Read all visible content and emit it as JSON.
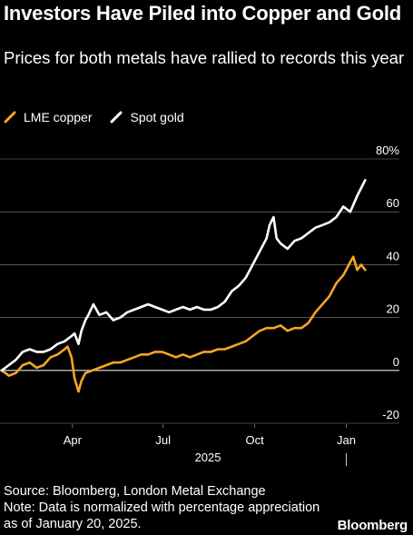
{
  "header": {
    "title": "Investors Have Piled into Copper and Gold",
    "subtitle": "Prices for both metals have rallied to records this year"
  },
  "footer": {
    "source": "Source: Bloomberg, London Metal Exchange",
    "note": "Note: Data is normalized with percentage appreciation as of January 20, 2025.",
    "brand": "Bloomberg"
  },
  "colors": {
    "background": "#000000",
    "copper": "#f5a623",
    "gold": "#ffffff",
    "grid": "#8a8a8a"
  },
  "chart_data": {
    "type": "line",
    "title": "Investors Have Piled into Copper and Gold",
    "subtitle": "Prices for both metals have rallied to records this year",
    "x_range": [
      "2025-01-20",
      "2026-01-27"
    ],
    "x_ticks": [
      {
        "date": "2025-04-01",
        "label": "Apr"
      },
      {
        "date": "2025-07-01",
        "label": "Jul"
      },
      {
        "date": "2025-10-01",
        "label": "Oct"
      },
      {
        "date": "2026-01-01",
        "label": "Jan"
      }
    ],
    "x_year_label": "2025",
    "ylim": [
      -20,
      80
    ],
    "y_ticks": [
      -20,
      0,
      20,
      40,
      60,
      80
    ],
    "y_tick_labels": [
      "-20",
      "0",
      "20",
      "40",
      "60",
      "80%"
    ],
    "y_axis_side": "right",
    "grid": true,
    "legend_position": "top-left",
    "series": [
      {
        "name": "LME copper",
        "color": "#f5a623",
        "points": [
          [
            "2025-01-20",
            0
          ],
          [
            "2025-01-27",
            -2
          ],
          [
            "2025-02-03",
            -1
          ],
          [
            "2025-02-10",
            2
          ],
          [
            "2025-02-17",
            3
          ],
          [
            "2025-02-24",
            1
          ],
          [
            "2025-03-03",
            2
          ],
          [
            "2025-03-10",
            5
          ],
          [
            "2025-03-17",
            6
          ],
          [
            "2025-03-24",
            8
          ],
          [
            "2025-03-27",
            9
          ],
          [
            "2025-03-31",
            5
          ],
          [
            "2025-04-03",
            -3
          ],
          [
            "2025-04-07",
            -8
          ],
          [
            "2025-04-10",
            -4
          ],
          [
            "2025-04-14",
            -1
          ],
          [
            "2025-04-21",
            0
          ],
          [
            "2025-04-28",
            1
          ],
          [
            "2025-05-05",
            2
          ],
          [
            "2025-05-12",
            3
          ],
          [
            "2025-05-19",
            3
          ],
          [
            "2025-05-26",
            4
          ],
          [
            "2025-06-02",
            5
          ],
          [
            "2025-06-09",
            6
          ],
          [
            "2025-06-16",
            6
          ],
          [
            "2025-06-23",
            7
          ],
          [
            "2025-06-30",
            7
          ],
          [
            "2025-07-07",
            6
          ],
          [
            "2025-07-14",
            5
          ],
          [
            "2025-07-21",
            6
          ],
          [
            "2025-07-28",
            5
          ],
          [
            "2025-08-04",
            6
          ],
          [
            "2025-08-11",
            7
          ],
          [
            "2025-08-18",
            7
          ],
          [
            "2025-08-25",
            8
          ],
          [
            "2025-09-01",
            8
          ],
          [
            "2025-09-08",
            9
          ],
          [
            "2025-09-15",
            10
          ],
          [
            "2025-09-22",
            11
          ],
          [
            "2025-09-29",
            13
          ],
          [
            "2025-10-06",
            15
          ],
          [
            "2025-10-13",
            16
          ],
          [
            "2025-10-20",
            16
          ],
          [
            "2025-10-27",
            17
          ],
          [
            "2025-11-03",
            15
          ],
          [
            "2025-11-10",
            16
          ],
          [
            "2025-11-17",
            16
          ],
          [
            "2025-11-24",
            18
          ],
          [
            "2025-12-01",
            22
          ],
          [
            "2025-12-08",
            25
          ],
          [
            "2025-12-15",
            28
          ],
          [
            "2025-12-22",
            33
          ],
          [
            "2025-12-29",
            36
          ],
          [
            "2026-01-05",
            41
          ],
          [
            "2026-01-08",
            43
          ],
          [
            "2026-01-12",
            38
          ],
          [
            "2026-01-16",
            40
          ],
          [
            "2026-01-20",
            38
          ]
        ]
      },
      {
        "name": "Spot gold",
        "color": "#ffffff",
        "points": [
          [
            "2025-01-20",
            0
          ],
          [
            "2025-01-27",
            2
          ],
          [
            "2025-02-03",
            4
          ],
          [
            "2025-02-10",
            7
          ],
          [
            "2025-02-17",
            8
          ],
          [
            "2025-02-24",
            7
          ],
          [
            "2025-03-03",
            7
          ],
          [
            "2025-03-10",
            8
          ],
          [
            "2025-03-17",
            10
          ],
          [
            "2025-03-24",
            11
          ],
          [
            "2025-03-31",
            13
          ],
          [
            "2025-04-03",
            14
          ],
          [
            "2025-04-07",
            10
          ],
          [
            "2025-04-10",
            15
          ],
          [
            "2025-04-14",
            19
          ],
          [
            "2025-04-17",
            21
          ],
          [
            "2025-04-22",
            25
          ],
          [
            "2025-04-28",
            21
          ],
          [
            "2025-05-05",
            22
          ],
          [
            "2025-05-12",
            19
          ],
          [
            "2025-05-19",
            20
          ],
          [
            "2025-05-26",
            22
          ],
          [
            "2025-06-02",
            23
          ],
          [
            "2025-06-09",
            24
          ],
          [
            "2025-06-16",
            25
          ],
          [
            "2025-06-23",
            24
          ],
          [
            "2025-06-30",
            23
          ],
          [
            "2025-07-07",
            22
          ],
          [
            "2025-07-14",
            23
          ],
          [
            "2025-07-21",
            24
          ],
          [
            "2025-07-28",
            23
          ],
          [
            "2025-08-04",
            24
          ],
          [
            "2025-08-11",
            23
          ],
          [
            "2025-08-18",
            23
          ],
          [
            "2025-08-25",
            24
          ],
          [
            "2025-09-01",
            26
          ],
          [
            "2025-09-08",
            30
          ],
          [
            "2025-09-15",
            32
          ],
          [
            "2025-09-22",
            35
          ],
          [
            "2025-09-29",
            40
          ],
          [
            "2025-10-06",
            45
          ],
          [
            "2025-10-13",
            50
          ],
          [
            "2025-10-16",
            55
          ],
          [
            "2025-10-20",
            58
          ],
          [
            "2025-10-23",
            50
          ],
          [
            "2025-10-27",
            48
          ],
          [
            "2025-11-03",
            46
          ],
          [
            "2025-11-10",
            49
          ],
          [
            "2025-11-17",
            50
          ],
          [
            "2025-11-24",
            52
          ],
          [
            "2025-12-01",
            54
          ],
          [
            "2025-12-08",
            55
          ],
          [
            "2025-12-15",
            56
          ],
          [
            "2025-12-22",
            58
          ],
          [
            "2025-12-29",
            62
          ],
          [
            "2026-01-05",
            60
          ],
          [
            "2026-01-12",
            66
          ],
          [
            "2026-01-16",
            69
          ],
          [
            "2026-01-20",
            72
          ]
        ]
      }
    ]
  }
}
